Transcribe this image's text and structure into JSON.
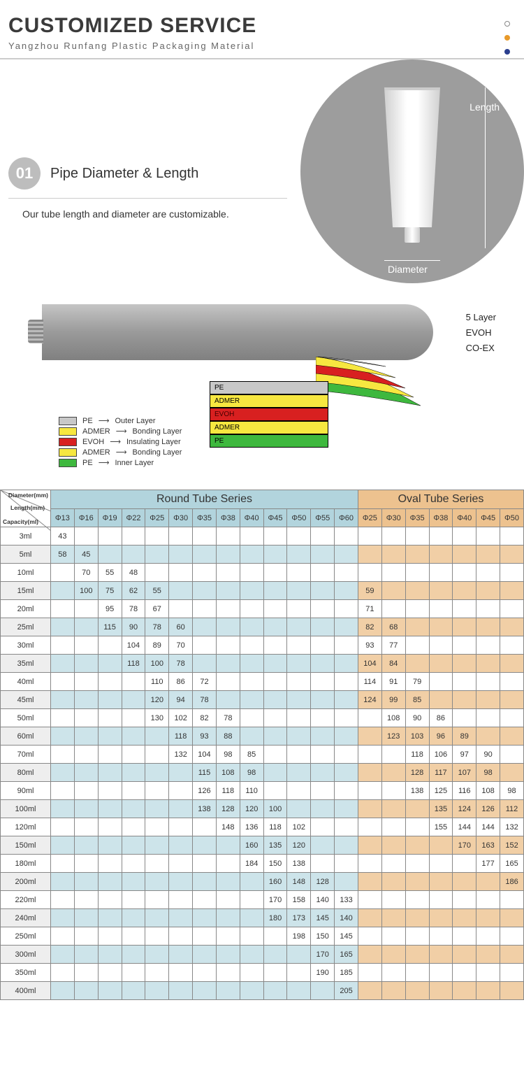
{
  "header": {
    "title": "CUSTOMIZED SERVICE",
    "subtitle": "Yangzhou Runfang Plastic Packaging Material",
    "dot_colors": [
      "#ffffff",
      "#e89a2a",
      "#2a3e8e"
    ],
    "dot_border": "#888"
  },
  "section1": {
    "number": "01",
    "title": "Pipe Diameter & Length",
    "text": "Our tube length and diameter are customizable.",
    "len_label": "Length",
    "dia_label": "Diameter",
    "circle_bg": "#9d9d9d"
  },
  "layers": {
    "right_labels": [
      "5 Layer",
      "EVOH",
      "CO-EX"
    ],
    "legend": [
      {
        "name": "PE",
        "desc": "Outer Layer",
        "color": "#c8c8c8"
      },
      {
        "name": "ADMER",
        "desc": "Bonding Layer",
        "color": "#f7e740"
      },
      {
        "name": "EVOH",
        "desc": "Insulating Layer",
        "color": "#d82020"
      },
      {
        "name": "ADMER",
        "desc": "Bonding Layer",
        "color": "#f7e740"
      },
      {
        "name": "PE",
        "desc": "Inner Layer",
        "color": "#3eb83e"
      }
    ],
    "stack": [
      {
        "label": "PE",
        "bg": "#c8c8c8",
        "fg": "#000"
      },
      {
        "label": "ADMER",
        "bg": "#f7e740",
        "fg": "#000"
      },
      {
        "label": "EVOH",
        "bg": "#d82020",
        "fg": "#400"
      },
      {
        "label": "ADMER",
        "bg": "#f7e740",
        "fg": "#000"
      },
      {
        "label": "PE",
        "bg": "#3eb83e",
        "fg": "#000"
      }
    ]
  },
  "table": {
    "corner": {
      "top": "Diameter(mm)",
      "mid": "Length(mm)",
      "bot": "Capacity(ml)"
    },
    "round_title": "Round Tube Series",
    "oval_title": "Oval Tube Series",
    "round_dias": [
      "Φ13",
      "Φ16",
      "Φ19",
      "Φ22",
      "Φ25",
      "Φ30",
      "Φ35",
      "Φ38",
      "Φ40",
      "Φ45",
      "Φ50",
      "Φ55",
      "Φ60"
    ],
    "oval_dias": [
      "Φ25",
      "Φ30",
      "Φ35",
      "Φ38",
      "Φ40",
      "Φ45",
      "Φ50"
    ],
    "rows": [
      {
        "cap": "3ml",
        "r": [
          "43",
          "",
          "",
          "",
          "",
          "",
          "",
          "",
          "",
          "",
          "",
          "",
          ""
        ],
        "o": [
          "",
          "",
          "",
          "",
          "",
          "",
          ""
        ]
      },
      {
        "cap": "5ml",
        "r": [
          "58",
          "45",
          "",
          "",
          "",
          "",
          "",
          "",
          "",
          "",
          "",
          "",
          ""
        ],
        "o": [
          "",
          "",
          "",
          "",
          "",
          "",
          ""
        ]
      },
      {
        "cap": "10ml",
        "r": [
          "",
          "70",
          "55",
          "48",
          "",
          "",
          "",
          "",
          "",
          "",
          "",
          "",
          ""
        ],
        "o": [
          "",
          "",
          "",
          "",
          "",
          "",
          ""
        ]
      },
      {
        "cap": "15ml",
        "r": [
          "",
          "100",
          "75",
          "62",
          "55",
          "",
          "",
          "",
          "",
          "",
          "",
          "",
          ""
        ],
        "o": [
          "59",
          "",
          "",
          "",
          "",
          "",
          ""
        ]
      },
      {
        "cap": "20ml",
        "r": [
          "",
          "",
          "95",
          "78",
          "67",
          "",
          "",
          "",
          "",
          "",
          "",
          "",
          ""
        ],
        "o": [
          "71",
          "",
          "",
          "",
          "",
          "",
          ""
        ]
      },
      {
        "cap": "25ml",
        "r": [
          "",
          "",
          "115",
          "90",
          "78",
          "60",
          "",
          "",
          "",
          "",
          "",
          "",
          ""
        ],
        "o": [
          "82",
          "68",
          "",
          "",
          "",
          "",
          ""
        ]
      },
      {
        "cap": "30ml",
        "r": [
          "",
          "",
          "",
          "104",
          "89",
          "70",
          "",
          "",
          "",
          "",
          "",
          "",
          ""
        ],
        "o": [
          "93",
          "77",
          "",
          "",
          "",
          "",
          ""
        ]
      },
      {
        "cap": "35ml",
        "r": [
          "",
          "",
          "",
          "118",
          "100",
          "78",
          "",
          "",
          "",
          "",
          "",
          "",
          ""
        ],
        "o": [
          "104",
          "84",
          "",
          "",
          "",
          "",
          ""
        ]
      },
      {
        "cap": "40ml",
        "r": [
          "",
          "",
          "",
          "",
          "110",
          "86",
          "72",
          "",
          "",
          "",
          "",
          "",
          ""
        ],
        "o": [
          "114",
          "91",
          "79",
          "",
          "",
          "",
          ""
        ]
      },
      {
        "cap": "45ml",
        "r": [
          "",
          "",
          "",
          "",
          "120",
          "94",
          "78",
          "",
          "",
          "",
          "",
          "",
          ""
        ],
        "o": [
          "124",
          "99",
          "85",
          "",
          "",
          "",
          ""
        ]
      },
      {
        "cap": "50ml",
        "r": [
          "",
          "",
          "",
          "",
          "130",
          "102",
          "82",
          "78",
          "",
          "",
          "",
          "",
          ""
        ],
        "o": [
          "",
          "108",
          "90",
          "86",
          "",
          "",
          ""
        ]
      },
      {
        "cap": "60ml",
        "r": [
          "",
          "",
          "",
          "",
          "",
          "118",
          "93",
          "88",
          "",
          "",
          "",
          "",
          ""
        ],
        "o": [
          "",
          "123",
          "103",
          "96",
          "89",
          "",
          ""
        ]
      },
      {
        "cap": "70ml",
        "r": [
          "",
          "",
          "",
          "",
          "",
          "132",
          "104",
          "98",
          "85",
          "",
          "",
          "",
          ""
        ],
        "o": [
          "",
          "",
          "118",
          "106",
          "97",
          "90",
          ""
        ]
      },
      {
        "cap": "80ml",
        "r": [
          "",
          "",
          "",
          "",
          "",
          "",
          "115",
          "108",
          "98",
          "",
          "",
          "",
          ""
        ],
        "o": [
          "",
          "",
          "128",
          "117",
          "107",
          "98",
          ""
        ]
      },
      {
        "cap": "90ml",
        "r": [
          "",
          "",
          "",
          "",
          "",
          "",
          "126",
          "118",
          "110",
          "",
          "",
          "",
          ""
        ],
        "o": [
          "",
          "",
          "138",
          "125",
          "116",
          "108",
          "98"
        ]
      },
      {
        "cap": "100ml",
        "r": [
          "",
          "",
          "",
          "",
          "",
          "",
          "138",
          "128",
          "120",
          "100",
          "",
          "",
          ""
        ],
        "o": [
          "",
          "",
          "",
          "135",
          "124",
          "126",
          "112"
        ]
      },
      {
        "cap": "120ml",
        "r": [
          "",
          "",
          "",
          "",
          "",
          "",
          "",
          "148",
          "136",
          "118",
          "102",
          "",
          ""
        ],
        "o": [
          "",
          "",
          "",
          "155",
          "144",
          "144",
          "132"
        ]
      },
      {
        "cap": "150ml",
        "r": [
          "",
          "",
          "",
          "",
          "",
          "",
          "",
          "",
          "160",
          "135",
          "120",
          "",
          ""
        ],
        "o": [
          "",
          "",
          "",
          "",
          "170",
          "163",
          "152"
        ]
      },
      {
        "cap": "180ml",
        "r": [
          "",
          "",
          "",
          "",
          "",
          "",
          "",
          "",
          "184",
          "150",
          "138",
          "",
          ""
        ],
        "o": [
          "",
          "",
          "",
          "",
          "",
          "177",
          "165"
        ]
      },
      {
        "cap": "200ml",
        "r": [
          "",
          "",
          "",
          "",
          "",
          "",
          "",
          "",
          "",
          "160",
          "148",
          "128",
          ""
        ],
        "o": [
          "",
          "",
          "",
          "",
          "",
          "",
          "186"
        ]
      },
      {
        "cap": "220ml",
        "r": [
          "",
          "",
          "",
          "",
          "",
          "",
          "",
          "",
          "",
          "170",
          "158",
          "140",
          "133"
        ],
        "o": [
          "",
          "",
          "",
          "",
          "",
          "",
          ""
        ]
      },
      {
        "cap": "240ml",
        "r": [
          "",
          "",
          "",
          "",
          "",
          "",
          "",
          "",
          "",
          "180",
          "173",
          "145",
          "140"
        ],
        "o": [
          "",
          "",
          "",
          "",
          "",
          "",
          ""
        ]
      },
      {
        "cap": "250ml",
        "r": [
          "",
          "",
          "",
          "",
          "",
          "",
          "",
          "",
          "",
          "",
          "198",
          "150",
          "145"
        ],
        "o": [
          "",
          "",
          "",
          "",
          "",
          "",
          ""
        ]
      },
      {
        "cap": "300ml",
        "r": [
          "",
          "",
          "",
          "",
          "",
          "",
          "",
          "",
          "",
          "",
          "",
          "170",
          "165"
        ],
        "o": [
          "",
          "",
          "",
          "",
          "",
          "",
          ""
        ]
      },
      {
        "cap": "350ml",
        "r": [
          "",
          "",
          "",
          "",
          "",
          "",
          "",
          "",
          "",
          "",
          "",
          "190",
          "185"
        ],
        "o": [
          "",
          "",
          "",
          "",
          "",
          "",
          ""
        ]
      },
      {
        "cap": "400ml",
        "r": [
          "",
          "",
          "",
          "",
          "",
          "",
          "",
          "",
          "",
          "",
          "",
          "",
          "205"
        ],
        "o": [
          "",
          "",
          "",
          "",
          "",
          "",
          ""
        ]
      }
    ],
    "colors": {
      "round_header": "#b2d4dd",
      "oval_header": "#edc28f",
      "round_alt": "#cde4ea",
      "oval_alt": "#f1cfa6"
    }
  }
}
